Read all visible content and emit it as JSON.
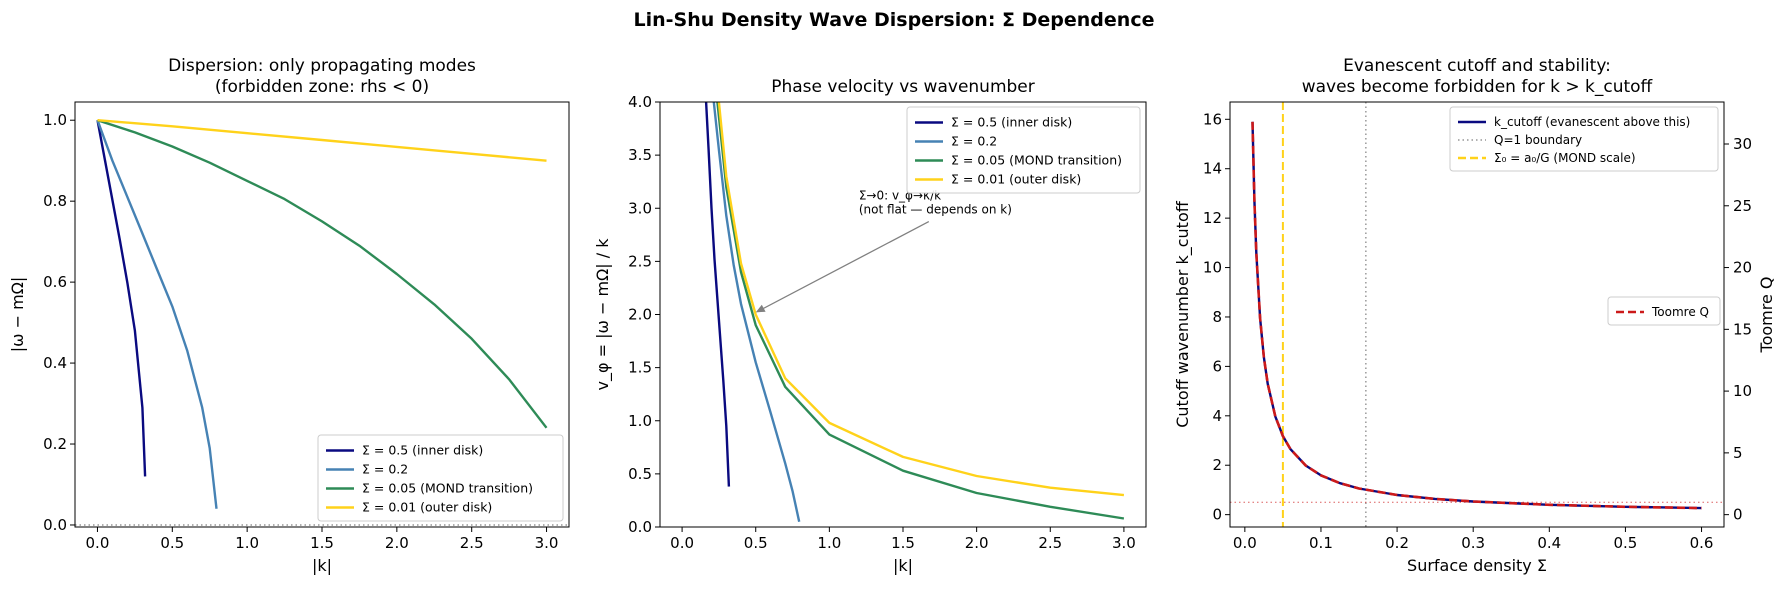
{
  "figure": {
    "suptitle": "Lin-Shu Density Wave Dispersion: Σ Dependence"
  },
  "colors": {
    "navy": "#0a0a80",
    "steelblue": "#4682b4",
    "seagreen": "#2e8b57",
    "gold": "#ffd21a",
    "red": "#cc1a1a",
    "gray": "#808080",
    "axis": "#000000"
  },
  "chart_data": [
    {
      "type": "line",
      "title": [
        "Dispersion: only propagating modes",
        "(forbidden zone: rhs < 0)"
      ],
      "xlabel": "|k|",
      "ylabel": "|ω − mΩ|",
      "xlim": [
        -0.15,
        3.15
      ],
      "ylim": [
        -0.005,
        1.045
      ],
      "xticks": [
        0.0,
        0.5,
        1.0,
        1.5,
        2.0,
        2.5,
        3.0
      ],
      "xtick_labels": [
        "0.0",
        "0.5",
        "1.0",
        "1.5",
        "2.0",
        "2.5",
        "3.0"
      ],
      "yticks": [
        0.0,
        0.2,
        0.4,
        0.6,
        0.8,
        1.0
      ],
      "ytick_labels": [
        "0.0",
        "0.2",
        "0.4",
        "0.6",
        "0.8",
        "1.0"
      ],
      "hline": {
        "y": 0.0,
        "style": "dotted",
        "color": "gray"
      },
      "legend_position": "lower-right",
      "series": [
        {
          "name": "Σ = 0.5  (inner disk)",
          "color": "navy",
          "x": [
            0.0,
            0.05,
            0.1,
            0.15,
            0.2,
            0.25,
            0.3,
            0.318
          ],
          "y": [
            1.0,
            0.902,
            0.803,
            0.703,
            0.598,
            0.48,
            0.29,
            0.12
          ]
        },
        {
          "name": "Σ = 0.2",
          "color": "steelblue",
          "x": [
            0.0,
            0.1,
            0.2,
            0.3,
            0.4,
            0.5,
            0.6,
            0.7,
            0.75,
            0.795
          ],
          "y": [
            1.0,
            0.9,
            0.81,
            0.72,
            0.63,
            0.54,
            0.43,
            0.29,
            0.19,
            0.04
          ]
        },
        {
          "name": "Σ = 0.05  (MOND transition)",
          "color": "seagreen",
          "x": [
            0.0,
            0.25,
            0.5,
            0.75,
            1.0,
            1.25,
            1.5,
            1.75,
            2.0,
            2.25,
            2.5,
            2.75,
            3.0
          ],
          "y": [
            1.0,
            0.97,
            0.935,
            0.895,
            0.85,
            0.805,
            0.75,
            0.69,
            0.62,
            0.545,
            0.46,
            0.36,
            0.24
          ]
        },
        {
          "name": "Σ = 0.01  (outer disk)",
          "color": "gold",
          "x": [
            0.0,
            0.5,
            1.0,
            1.5,
            2.0,
            2.5,
            3.0
          ],
          "y": [
            1.0,
            0.985,
            0.968,
            0.951,
            0.934,
            0.917,
            0.9
          ]
        }
      ]
    },
    {
      "type": "line",
      "title": [
        "Phase velocity vs wavenumber"
      ],
      "xlabel": "|k|",
      "ylabel": "v_φ = |ω − mΩ| / k",
      "xlim": [
        -0.15,
        3.15
      ],
      "ylim": [
        0.0,
        4.0
      ],
      "xticks": [
        0.0,
        0.5,
        1.0,
        1.5,
        2.0,
        2.5,
        3.0
      ],
      "xtick_labels": [
        "0.0",
        "0.5",
        "1.0",
        "1.5",
        "2.0",
        "2.5",
        "3.0"
      ],
      "yticks": [
        0.0,
        0.5,
        1.0,
        1.5,
        2.0,
        2.5,
        3.0,
        3.5,
        4.0
      ],
      "ytick_labels": [
        "0.0",
        "0.5",
        "1.0",
        "1.5",
        "2.0",
        "2.5",
        "3.0",
        "3.5",
        "4.0"
      ],
      "legend_position": "upper-right",
      "annotation": {
        "lines": [
          "Σ→0: v_φ→κ/k",
          "(not flat — depends on k)"
        ],
        "text_at": [
          1.2,
          2.95
        ],
        "arrow_to": [
          0.5,
          2.02
        ]
      },
      "series": [
        {
          "name": "Σ = 0.5  (inner disk)",
          "color": "navy",
          "x": [
            0.163,
            0.18,
            0.2,
            0.22,
            0.25,
            0.28,
            0.3,
            0.318
          ],
          "y": [
            4.0,
            3.55,
            3.0,
            2.52,
            1.95,
            1.38,
            0.95,
            0.38
          ]
        },
        {
          "name": "Σ = 0.2",
          "color": "steelblue",
          "x": [
            0.215,
            0.25,
            0.3,
            0.35,
            0.4,
            0.5,
            0.6,
            0.7,
            0.75,
            0.795
          ],
          "y": [
            4.0,
            3.55,
            2.93,
            2.47,
            2.1,
            1.55,
            1.08,
            0.6,
            0.34,
            0.05
          ]
        },
        {
          "name": "Σ = 0.05  (MOND transition)",
          "color": "seagreen",
          "x": [
            0.24,
            0.3,
            0.4,
            0.5,
            0.7,
            1.0,
            1.5,
            2.0,
            2.5,
            3.0
          ],
          "y": [
            4.0,
            3.2,
            2.4,
            1.9,
            1.32,
            0.87,
            0.53,
            0.32,
            0.19,
            0.08
          ]
        },
        {
          "name": "Σ = 0.01  (outer disk)",
          "color": "gold",
          "x": [
            0.25,
            0.3,
            0.4,
            0.5,
            0.7,
            1.0,
            1.5,
            2.0,
            2.5,
            3.0
          ],
          "y": [
            4.0,
            3.3,
            2.48,
            2.0,
            1.4,
            0.98,
            0.66,
            0.48,
            0.37,
            0.3
          ]
        }
      ]
    },
    {
      "type": "line",
      "title": [
        "Evanescent cutoff and stability:",
        "waves become forbidden for k > k_cutoff"
      ],
      "xlabel": "Surface density Σ",
      "ylabel": "Cutoff wavenumber k_cutoff",
      "ylabel_right": "Toomre Q",
      "xlim": [
        -0.0195,
        0.6295
      ],
      "ylim": [
        -0.5,
        16.7
      ],
      "ylim_right": [
        -1.0,
        33.4
      ],
      "xticks": [
        0.0,
        0.1,
        0.2,
        0.3,
        0.4,
        0.5,
        0.6
      ],
      "xtick_labels": [
        "0.0",
        "0.1",
        "0.2",
        "0.3",
        "0.4",
        "0.5",
        "0.6"
      ],
      "yticks": [
        0,
        2,
        4,
        6,
        8,
        10,
        12,
        14,
        16
      ],
      "ytick_labels": [
        "0",
        "2",
        "4",
        "6",
        "8",
        "10",
        "12",
        "14",
        "16"
      ],
      "yticks_right": [
        0,
        5,
        10,
        15,
        20,
        25,
        30
      ],
      "ytick_labels_right": [
        "0",
        "5",
        "10",
        "15",
        "20",
        "25",
        "30"
      ],
      "vlines": [
        {
          "x": 0.159,
          "style": "dotted",
          "color": "gray",
          "name": "Q=1 boundary"
        },
        {
          "x": 0.05,
          "style": "dashed",
          "color": "gold",
          "name": "Σ₀ = a₀/G  (MOND scale)"
        }
      ],
      "hline_right": {
        "y": 1.0,
        "style": "dotted",
        "color": "red"
      },
      "legend_position": "upper-right",
      "legend_right_position": "center-right",
      "series": [
        {
          "name": "k_cutoff (evanescent above this)",
          "color": "navy",
          "axis": "left",
          "x": [
            0.01,
            0.0125,
            0.015,
            0.02,
            0.025,
            0.03,
            0.04,
            0.05,
            0.06,
            0.08,
            0.1,
            0.125,
            0.15,
            0.2,
            0.25,
            0.3,
            0.4,
            0.5,
            0.6
          ],
          "y": [
            15.9,
            12.72,
            10.6,
            7.95,
            6.36,
            5.3,
            3.975,
            3.18,
            2.65,
            1.99,
            1.59,
            1.272,
            1.06,
            0.795,
            0.636,
            0.53,
            0.3975,
            0.318,
            0.265
          ]
        },
        {
          "name": "Toomre Q",
          "color": "red",
          "axis": "right",
          "style": "dashed",
          "x": [
            0.01,
            0.0125,
            0.015,
            0.02,
            0.025,
            0.03,
            0.04,
            0.05,
            0.06,
            0.08,
            0.1,
            0.125,
            0.15,
            0.2,
            0.25,
            0.3,
            0.4,
            0.5,
            0.6
          ],
          "y": [
            31.8,
            25.44,
            21.2,
            15.9,
            12.72,
            10.6,
            7.95,
            6.36,
            5.3,
            3.975,
            3.18,
            2.544,
            2.12,
            1.59,
            1.272,
            1.06,
            0.795,
            0.636,
            0.53
          ]
        }
      ],
      "legend_entries": [
        {
          "label": "k_cutoff (evanescent above this)",
          "color": "navy",
          "style": "solid"
        },
        {
          "label": "Q=1 boundary",
          "color": "gray",
          "style": "dotted"
        },
        {
          "label": "Σ₀ = a₀/G  (MOND scale)",
          "color": "gold",
          "style": "dashed"
        }
      ],
      "legend_right_entries": [
        {
          "label": "Toomre Q",
          "color": "red",
          "style": "dashed"
        }
      ]
    }
  ]
}
